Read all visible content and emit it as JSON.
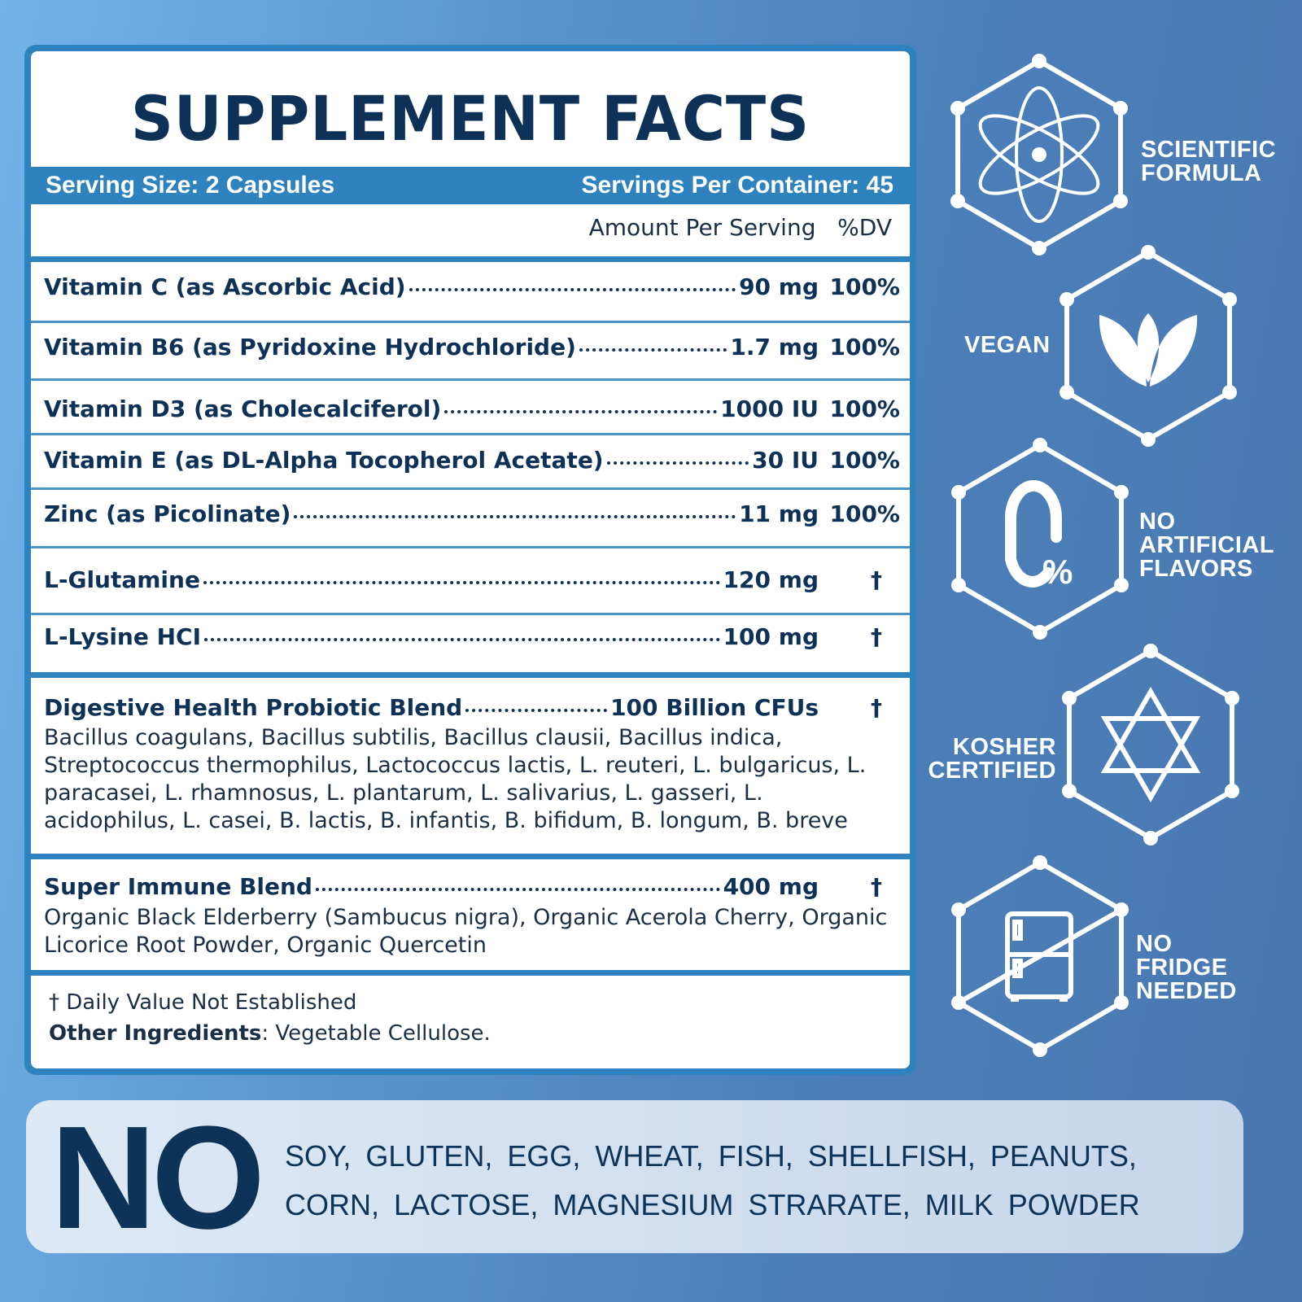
{
  "title": "SUPPLEMENT FACTS",
  "serving_size": "Serving Size: 2 Capsules",
  "servings_per_container": "Servings Per Container: 45",
  "amount_header": "Amount Per Serving",
  "dv_header": "%DV",
  "rows": [
    {
      "name": "Vitamin C (as Ascorbic Acid)",
      "amount": "90 mg",
      "dv": "100%"
    },
    {
      "name": "Vitamin B6 (as Pyridoxine Hydrochloride)",
      "amount": "1.7 mg",
      "dv": "100%"
    },
    {
      "name": "Vitamin D3 (as Cholecalciferol)",
      "amount": "1000 IU",
      "dv": "100%"
    },
    {
      "name": "Vitamin E (as DL-Alpha Tocopherol Acetate)",
      "amount": "30 IU",
      "dv": "100%"
    },
    {
      "name": "Zinc (as Picolinate)",
      "amount": "11 mg",
      "dv": "100%"
    },
    {
      "name": "L-Glutamine",
      "amount": "120 mg",
      "dv": "†"
    },
    {
      "name": "L-Lysine HCI",
      "amount": "100 mg",
      "dv": "†"
    },
    {
      "name": "Digestive Health Probiotic Blend",
      "amount": "100 Billion CFUs",
      "dv": "†",
      "detail": "Bacillus coagulans, Bacillus subtilis, Bacillus clausii, Bacillus indica, Streptococcus thermophilus, Lactococcus lactis, L. reuteri, L. bulgaricus, L. paracasei, L. rhamnosus, L. plantarum, L. salivarius, L. gasseri, L. acidophilus, L. casei, B. lactis, B. infantis, B. bifidum, B. longum, B. breve"
    },
    {
      "name": "Super Immune Blend",
      "amount": "400 mg",
      "dv": "†",
      "detail": "Organic Black Elderberry (Sambucus nigra), Organic Acerola Cherry, Organic Licorice Root Powder, Organic Quercetin"
    }
  ],
  "footnote": "† Daily Value Not Established",
  "other_label": "Other Ingredients",
  "other_value": ":  Vegetable Cellulose.",
  "badges": [
    {
      "icon": "atom-icon",
      "line1": "SCIENTIFIC",
      "line2": "FORMULA"
    },
    {
      "icon": "leaf-icon",
      "line1": "VEGAN"
    },
    {
      "icon": "zero-percent-icon",
      "line1": "NO",
      "line2": "ARTIFICIAL",
      "line3": "FLAVORS"
    },
    {
      "icon": "star-of-david-icon",
      "line1": "KOSHER",
      "line2": "CERTIFIED"
    },
    {
      "icon": "no-fridge-icon",
      "line1": "NO",
      "line2": "FRIDGE",
      "line3": "NEEDED"
    }
  ],
  "free_from": {
    "big": "NO",
    "line1": "SOY,  GLUTEN,  EGG,  WHEAT,  FISH,  SHELLFISH,  PEANUTS,",
    "line2": "CORN,  LACTOSE,  MAGNESIUM STRARATE,  MILK POWDER"
  },
  "colors": {
    "navy": "#0e3257",
    "accent": "#2e82bd",
    "background": "#4b7fb9"
  }
}
